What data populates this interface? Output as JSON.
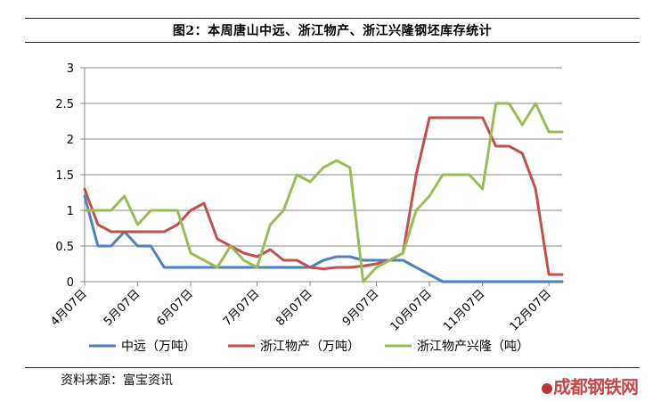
{
  "title": "图2：本周唐山中远、浙江物产、浙江兴隆钢坯库存统计",
  "source": "资料来源：富宝资讯",
  "watermark": "成都钢铁网",
  "chart_data": {
    "type": "line",
    "ylim": [
      0,
      3
    ],
    "yticks": [
      "0",
      "0.5",
      "1",
      "1.5",
      "2",
      "2.5",
      "3"
    ],
    "x_count": 37,
    "x_labels": [
      {
        "index": 0,
        "label": "4月07日"
      },
      {
        "index": 4,
        "label": "5月07日"
      },
      {
        "index": 8,
        "label": "6月07日"
      },
      {
        "index": 13,
        "label": "7月07日"
      },
      {
        "index": 17,
        "label": "8月07日"
      },
      {
        "index": 22,
        "label": "9月07日"
      },
      {
        "index": 26,
        "label": "10月07日"
      },
      {
        "index": 30,
        "label": "11月07日"
      },
      {
        "index": 35,
        "label": "12月07日"
      }
    ],
    "legend_position": "bottom",
    "series": [
      {
        "name": "中远（万吨）",
        "color": "#4f81bd",
        "values": [
          1.2,
          0.5,
          0.5,
          0.7,
          0.5,
          0.5,
          0.2,
          0.2,
          0.2,
          0.2,
          0.2,
          0.2,
          0.2,
          0.2,
          0.2,
          0.2,
          0.2,
          0.2,
          0.3,
          0.35,
          0.35,
          0.3,
          0.3,
          0.3,
          0.3,
          0.2,
          0.1,
          0,
          0,
          0,
          0,
          0,
          0,
          0,
          0,
          0,
          0
        ]
      },
      {
        "name": "浙江物产（万吨）",
        "color": "#c0504d",
        "values": [
          1.3,
          0.8,
          0.7,
          0.7,
          0.7,
          0.7,
          0.7,
          0.8,
          1.0,
          1.1,
          0.6,
          0.5,
          0.4,
          0.35,
          0.45,
          0.3,
          0.3,
          0.2,
          0.18,
          0.2,
          0.2,
          0.22,
          0.25,
          0.3,
          0.4,
          1.5,
          2.3,
          2.3,
          2.3,
          2.3,
          2.3,
          1.9,
          1.9,
          1.8,
          1.3,
          0.1,
          0.1
        ]
      },
      {
        "name": "浙江物产兴隆（吨）",
        "color": "#9bbb59",
        "values": [
          1.0,
          1.0,
          1.0,
          1.2,
          0.8,
          1.0,
          1.0,
          1.0,
          0.4,
          0.3,
          0.2,
          0.5,
          0.3,
          0.2,
          0.8,
          1.0,
          1.5,
          1.4,
          1.6,
          1.7,
          1.6,
          0,
          0.2,
          0.3,
          0.4,
          1.0,
          1.2,
          1.5,
          1.5,
          1.5,
          1.3,
          2.5,
          2.5,
          2.2,
          2.5,
          2.1,
          2.1
        ]
      }
    ]
  }
}
